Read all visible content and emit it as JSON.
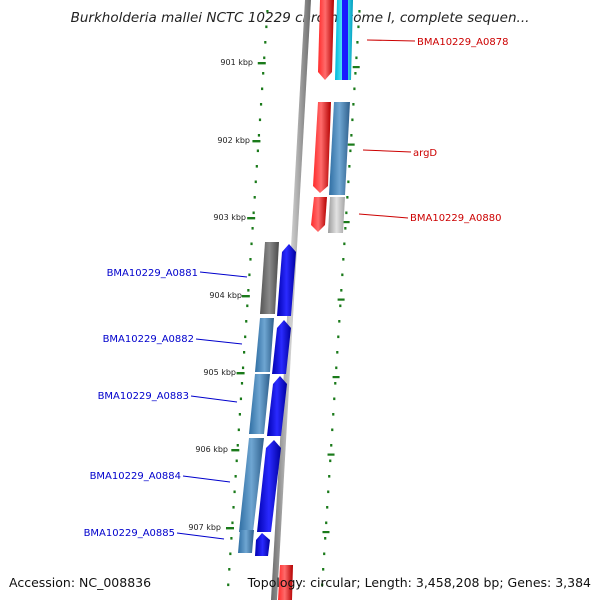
{
  "header": {
    "title": "Burkholderia mallei NCTC 10229 chromosome I, complete sequen..."
  },
  "footer": {
    "accession": "Accession: NC_008836",
    "summary": "Topology: circular; Length: 3,458,208 bp; Genes: 3,384"
  },
  "ruler": {
    "ticks": [
      "901 kbp",
      "902 kbp",
      "903 kbp",
      "904 kbp",
      "905 kbp",
      "906 kbp",
      "907 kbp"
    ],
    "tick_color": "#1a7a1a"
  },
  "genes": [
    {
      "label": "BMA10229_A0878",
      "strand": "forward",
      "color": "#cc0000"
    },
    {
      "label": "argD",
      "strand": "forward",
      "color": "#cc0000"
    },
    {
      "label": "BMA10229_A0880",
      "strand": "forward",
      "color": "#cc0000"
    },
    {
      "label": "BMA10229_A0881",
      "strand": "reverse",
      "color": "#0000cc"
    },
    {
      "label": "BMA10229_A0882",
      "strand": "reverse",
      "color": "#0000cc"
    },
    {
      "label": "BMA10229_A0883",
      "strand": "reverse",
      "color": "#0000cc"
    },
    {
      "label": "BMA10229_A0884",
      "strand": "reverse",
      "color": "#0000cc"
    },
    {
      "label": "BMA10229_A0885",
      "strand": "reverse",
      "color": "#0000cc"
    }
  ]
}
